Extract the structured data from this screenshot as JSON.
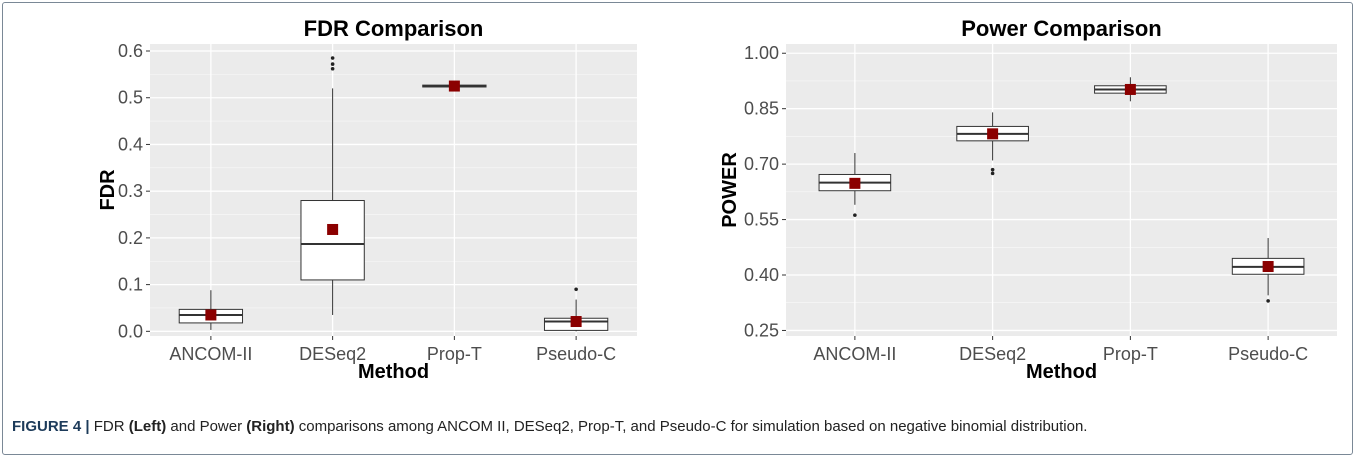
{
  "chart_data": [
    {
      "type": "box",
      "title": "FDR Comparison",
      "xlabel": "Method",
      "ylabel": "FDR",
      "categories": [
        "ANCOM-II",
        "DESeq2",
        "Prop-T",
        "Pseudo-C"
      ],
      "yticks": [
        0.0,
        0.1,
        0.2,
        0.3,
        0.4,
        0.5,
        0.6
      ],
      "ytick_labels": [
        "0.0",
        "0.1",
        "0.2",
        "0.3",
        "0.4",
        "0.5",
        "0.6"
      ],
      "ylim": [
        -0.01,
        0.615
      ],
      "boxes": [
        {
          "min": 0.003,
          "q1": 0.018,
          "median": 0.035,
          "q3": 0.047,
          "max": 0.088,
          "mean": 0.035,
          "outliers": []
        },
        {
          "min": 0.035,
          "q1": 0.11,
          "median": 0.187,
          "q3": 0.28,
          "max": 0.52,
          "mean": 0.218,
          "outliers": [
            0.562,
            0.572,
            0.585
          ]
        },
        {
          "min": 0.521,
          "q1": 0.523,
          "median": 0.525,
          "q3": 0.527,
          "max": 0.531,
          "mean": 0.525,
          "outliers": []
        },
        {
          "min": 0.0,
          "q1": 0.002,
          "median": 0.021,
          "q3": 0.028,
          "max": 0.068,
          "mean": 0.021,
          "outliers": [
            0.09
          ]
        }
      ]
    },
    {
      "type": "box",
      "title": "Power Comparison",
      "xlabel": "Method",
      "ylabel": "POWER",
      "categories": [
        "ANCOM-II",
        "DESeq2",
        "Prop-T",
        "Pseudo-C"
      ],
      "yticks": [
        0.25,
        0.4,
        0.55,
        0.7,
        0.85,
        1.0
      ],
      "ytick_labels": [
        "0.25",
        "0.40",
        "0.55",
        "0.70",
        "0.85",
        "1.00"
      ],
      "ylim": [
        0.235,
        1.025
      ],
      "boxes": [
        {
          "min": 0.59,
          "q1": 0.628,
          "median": 0.65,
          "q3": 0.672,
          "max": 0.73,
          "mean": 0.648,
          "outliers": [
            0.562
          ]
        },
        {
          "min": 0.71,
          "q1": 0.763,
          "median": 0.782,
          "q3": 0.802,
          "max": 0.84,
          "mean": 0.782,
          "outliers": [
            0.675,
            0.685
          ]
        },
        {
          "min": 0.87,
          "q1": 0.892,
          "median": 0.902,
          "q3": 0.912,
          "max": 0.935,
          "mean": 0.902,
          "outliers": []
        },
        {
          "min": 0.345,
          "q1": 0.402,
          "median": 0.422,
          "q3": 0.445,
          "max": 0.5,
          "mean": 0.423,
          "outliers": [
            0.33
          ]
        }
      ]
    }
  ],
  "colors": {
    "panel_bg": "#ebebeb",
    "grid_major": "#ffffff",
    "box_stroke": "#333333",
    "mean_marker": "#8b0000",
    "tick_text": "#4d4d4d",
    "title_text": "#000000"
  },
  "caption": {
    "label": "FIGURE 4 |",
    "t1": " FDR ",
    "b1": "(Left)",
    "t2": " and Power ",
    "b2": "(Right)",
    "t3": " comparisons among ANCOM II, DESeq2, Prop-T, and Pseudo-C for simulation based on negative binomial distribution."
  }
}
